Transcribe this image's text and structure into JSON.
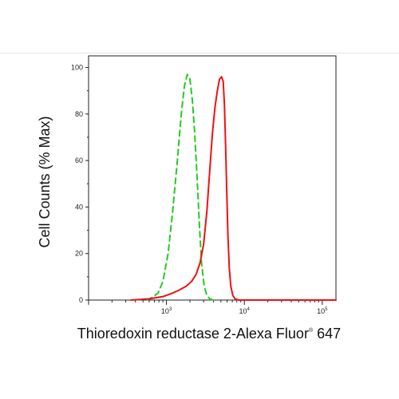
{
  "chart_data": {
    "type": "line",
    "xlabel": "Thioredoxin reductase 2-Alexa Fluor",
    "xlabel_reg": "®",
    "xlabel_suffix": "647",
    "ylabel": "Cell Counts (% Max)",
    "x_scale": "log",
    "xlim": [
      100,
      150000
    ],
    "ylim": [
      0,
      105
    ],
    "y_ticks": [
      0,
      20,
      40,
      60,
      80,
      100
    ],
    "x_tick_labels": [
      {
        "value": 1000,
        "base": "10",
        "exp": "3"
      },
      {
        "value": 10000,
        "base": "10",
        "exp": "4"
      },
      {
        "value": 100000,
        "base": "10",
        "exp": "5"
      }
    ],
    "grid": false,
    "legend": "none",
    "series": [
      {
        "color": "#22cc22",
        "style": "dashed",
        "points": [
          [
            560,
            0
          ],
          [
            650,
            1
          ],
          [
            780,
            3
          ],
          [
            900,
            8
          ],
          [
            1050,
            20
          ],
          [
            1200,
            38
          ],
          [
            1380,
            60
          ],
          [
            1550,
            80
          ],
          [
            1700,
            92
          ],
          [
            1850,
            97
          ],
          [
            2000,
            95
          ],
          [
            2150,
            86
          ],
          [
            2300,
            72
          ],
          [
            2480,
            52
          ],
          [
            2650,
            32
          ],
          [
            2820,
            16
          ],
          [
            3050,
            6
          ],
          [
            3300,
            2
          ],
          [
            3600,
            0.5
          ],
          [
            4000,
            0
          ]
        ]
      },
      {
        "color": "#ee1111",
        "style": "solid",
        "points": [
          [
            350,
            0
          ],
          [
            600,
            0.5
          ],
          [
            900,
            1.5
          ],
          [
            1200,
            3
          ],
          [
            1500,
            4.5
          ],
          [
            1800,
            6
          ],
          [
            2100,
            8
          ],
          [
            2400,
            11
          ],
          [
            2700,
            16
          ],
          [
            3000,
            24
          ],
          [
            3300,
            38
          ],
          [
            3600,
            56
          ],
          [
            3900,
            72
          ],
          [
            4200,
            83
          ],
          [
            4500,
            90
          ],
          [
            4800,
            95
          ],
          [
            5100,
            96
          ],
          [
            5350,
            94
          ],
          [
            5550,
            84
          ],
          [
            5750,
            66
          ],
          [
            5950,
            46
          ],
          [
            6150,
            28
          ],
          [
            6400,
            14
          ],
          [
            6700,
            6
          ],
          [
            7100,
            2
          ],
          [
            7600,
            0.5
          ],
          [
            8500,
            0
          ],
          [
            150000,
            0
          ]
        ]
      }
    ]
  }
}
